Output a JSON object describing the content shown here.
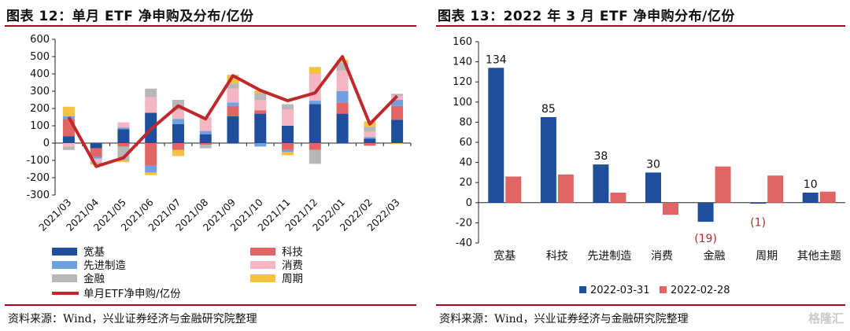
{
  "left": {
    "title": "图表 12：单月 ETF 净申购及分布/亿份",
    "source": "资料来源：Wind，兴业证券经济与金融研究院整理",
    "chart_data": {
      "type": "bar",
      "stacked": true,
      "categories": [
        "2021/03",
        "2021/04",
        "2021/05",
        "2021/06",
        "2021/07",
        "2021/08",
        "2021/09",
        "2021/10",
        "2021/11",
        "2021/12",
        "2022/01",
        "2022/02",
        "2022/03"
      ],
      "ylim": [
        -300,
        600
      ],
      "yticks": [
        -300,
        -200,
        -100,
        0,
        100,
        200,
        300,
        400,
        500,
        600
      ],
      "series": [
        {
          "name": "宽基",
          "color": "#1f4e9b",
          "values": [
            40,
            -30,
            80,
            175,
            110,
            50,
            155,
            170,
            100,
            225,
            170,
            25,
            135
          ]
        },
        {
          "name": "科技",
          "color": "#e06666",
          "values": [
            100,
            -50,
            -20,
            -130,
            -40,
            -10,
            60,
            20,
            -40,
            -40,
            65,
            -15,
            80
          ]
        },
        {
          "name": "先进制造",
          "color": "#6fa0e0",
          "values": [
            15,
            -10,
            10,
            -40,
            30,
            20,
            20,
            -20,
            -10,
            20,
            65,
            10,
            35
          ]
        },
        {
          "name": "消费",
          "color": "#f4b6c2",
          "values": [
            -20,
            -20,
            30,
            90,
            50,
            80,
            80,
            60,
            95,
            155,
            120,
            30,
            25
          ]
        },
        {
          "name": "金融",
          "color": "#b7b7b7",
          "values": [
            -20,
            -10,
            -80,
            50,
            60,
            -20,
            30,
            40,
            30,
            -80,
            45,
            30,
            10
          ]
        },
        {
          "name": "周期",
          "color": "#f6c042",
          "values": [
            55,
            -5,
            -10,
            -15,
            -35,
            0,
            50,
            15,
            -20,
            40,
            15,
            30,
            -5
          ]
        }
      ],
      "line": {
        "name": "单月ETF净申购/亿份",
        "color": "#c0282c",
        "values": [
          150,
          -135,
          -85,
          80,
          215,
          140,
          390,
          305,
          245,
          290,
          500,
          110,
          272
        ]
      },
      "legend": [
        {
          "key": "宽基",
          "type": "bar",
          "color": "#1f4e9b"
        },
        {
          "key": "科技",
          "type": "bar",
          "color": "#e06666"
        },
        {
          "key": "先进制造",
          "type": "bar",
          "color": "#6fa0e0"
        },
        {
          "key": "消费",
          "type": "bar",
          "color": "#f4b6c2"
        },
        {
          "key": "金融",
          "type": "bar",
          "color": "#b7b7b7"
        },
        {
          "key": "周期",
          "type": "bar",
          "color": "#f6c042"
        },
        {
          "key": "单月ETF净申购/亿份",
          "type": "line",
          "color": "#c0282c"
        }
      ]
    }
  },
  "right": {
    "title": "图表 13：2022 年 3 月 ETF 净申购分布/亿份",
    "source": "资料来源：Wind，兴业证券经济与金融研究院整理",
    "chart_data": {
      "type": "bar",
      "categories": [
        "宽基",
        "科技",
        "先进制造",
        "消费",
        "金融",
        "周期",
        "其他主题"
      ],
      "ylim": [
        -40,
        160
      ],
      "yticks": [
        -40,
        -20,
        0,
        20,
        40,
        60,
        80,
        100,
        120,
        140,
        160
      ],
      "series": [
        {
          "name": "2022-03-31",
          "color": "#1f4e9b",
          "values": [
            134,
            85,
            38,
            30,
            -19,
            -1,
            10
          ]
        },
        {
          "name": "2022-02-28",
          "color": "#e06666",
          "values": [
            26,
            28,
            10,
            -12,
            36,
            27,
            11
          ]
        }
      ],
      "data_labels": [
        "134",
        "85",
        "38",
        "30",
        "(19)",
        "(1)",
        "10"
      ]
    }
  },
  "watermark": "格隆汇"
}
